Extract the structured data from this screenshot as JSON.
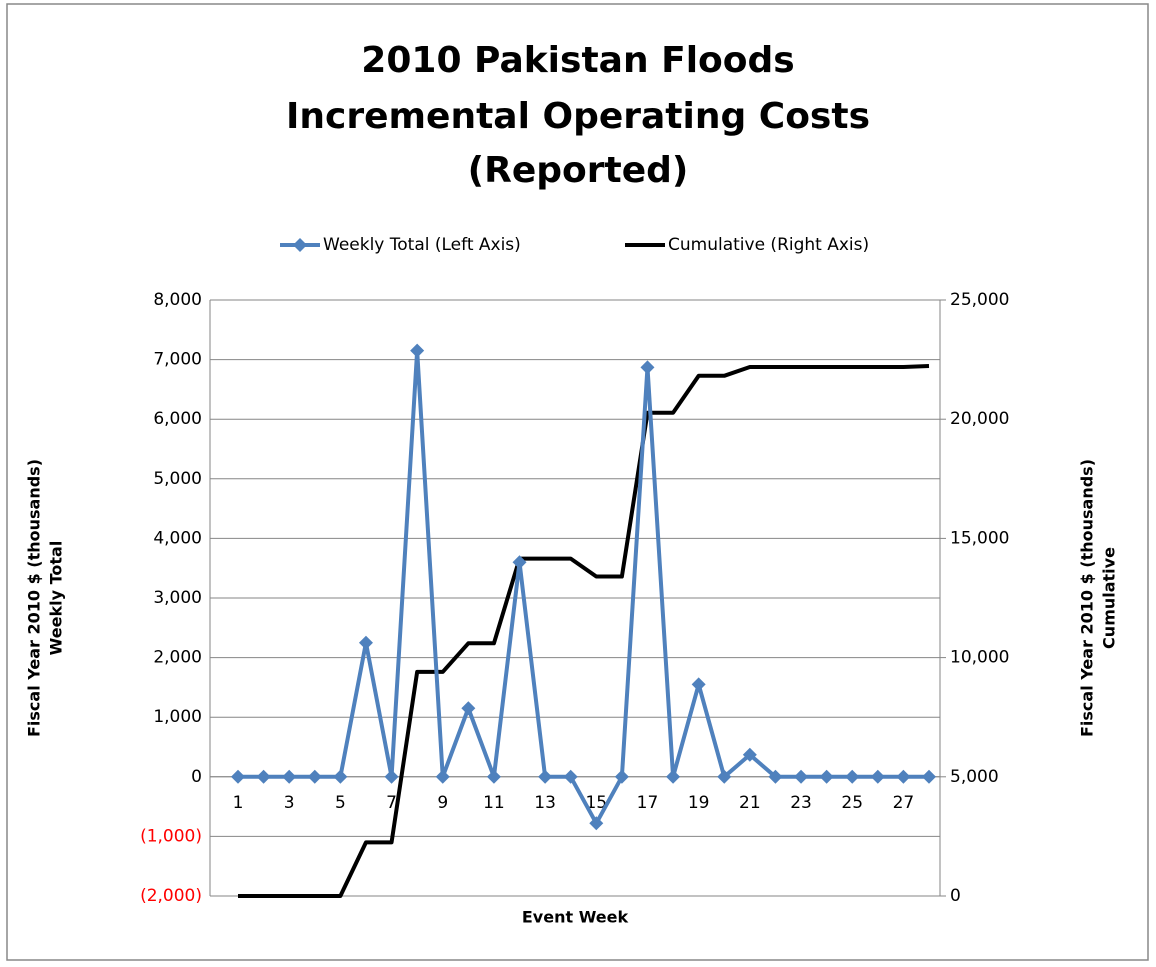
{
  "chart_data": {
    "type": "line",
    "title": [
      "2010 Pakistan Floods",
      "Incremental Operating Costs",
      "(Reported)"
    ],
    "xlabel": "Event Week",
    "ylabel": [
      "Fiscal Year 2010 $ (thousands)",
      "Weekly Total"
    ],
    "y2label": [
      "Fiscal Year 2010 $ (thousands)",
      "Cumulative"
    ],
    "categories": [
      "1",
      null,
      "3",
      null,
      "5",
      null,
      "7",
      null,
      "9",
      null,
      "11",
      null,
      "13",
      null,
      "15",
      null,
      "17",
      null,
      "19",
      null,
      "21",
      null,
      "23",
      null,
      "25",
      null,
      "27",
      null
    ],
    "series": [
      {
        "name": "Weekly Total (Left Axis)",
        "color": "#4f81bd",
        "marker": "diamond",
        "values": [
          0,
          0,
          0,
          0,
          0,
          2250,
          0,
          7150,
          0,
          1150,
          0,
          3600,
          0,
          0,
          -780,
          0,
          6870,
          0,
          1550,
          0,
          370,
          0,
          0,
          0,
          0,
          0,
          0,
          0
        ]
      },
      {
        "name": "Cumulative (Right Axis)",
        "color": "#000000",
        "axis": "y2",
        "values": [
          0,
          0,
          0,
          0,
          0,
          2250,
          2250,
          9400,
          9400,
          10600,
          10600,
          14150,
          14150,
          14150,
          13400,
          13400,
          20270,
          20270,
          21820,
          21820,
          22190,
          22190,
          22190,
          22190,
          22190,
          22190,
          22190,
          22230
        ]
      }
    ],
    "ylim": [
      -2000,
      8000
    ],
    "yticks": [
      {
        "value": -2000,
        "label": "(2,000)"
      },
      {
        "value": -1000,
        "label": "(1,000)"
      },
      0,
      {
        "value": 1000,
        "label": "1,000"
      },
      {
        "value": 2000,
        "label": "2,000"
      },
      {
        "value": 3000,
        "label": "3,000"
      },
      {
        "value": 4000,
        "label": "4,000"
      },
      {
        "value": 5000,
        "label": "5,000"
      },
      {
        "value": 6000,
        "label": "6,000"
      },
      {
        "value": 7000,
        "label": "7,000"
      },
      {
        "value": 8000,
        "label": "8,000"
      }
    ],
    "y2lim": [
      0,
      25000
    ],
    "y2ticks": [
      0,
      {
        "value": 5000,
        "label": "5,000"
      },
      {
        "value": 10000,
        "label": "10,000"
      },
      {
        "value": 15000,
        "label": "15,000"
      },
      {
        "value": 20000,
        "label": "20,000"
      },
      {
        "value": 25000,
        "label": "25,000"
      }
    ],
    "negative_tick_color": "#ff0000",
    "grid": true,
    "legend": "top"
  }
}
